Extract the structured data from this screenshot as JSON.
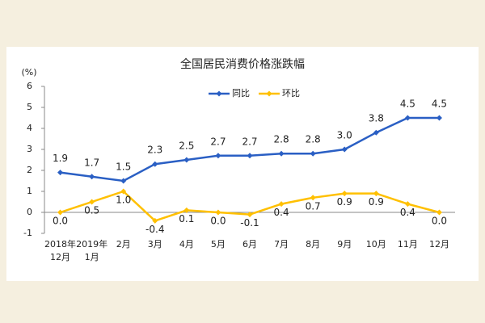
{
  "chart_data": {
    "type": "line",
    "title": "全国居民消费价格涨跌幅",
    "ylabel": "(%)",
    "categories": [
      "2018年\n12月",
      "2019年\n1月",
      "2月",
      "3月",
      "4月",
      "5月",
      "6月",
      "7月",
      "8月",
      "9月",
      "10月",
      "11月",
      "12月"
    ],
    "series": [
      {
        "name": "同比",
        "color": "#2a5fc4",
        "values": [
          1.9,
          1.7,
          1.5,
          2.3,
          2.5,
          2.7,
          2.7,
          2.8,
          2.8,
          3.0,
          3.8,
          4.5,
          4.5
        ],
        "value_labels": [
          "1.9",
          "1.7",
          "1.5",
          "2.3",
          "2.5",
          "2.7",
          "2.7",
          "2.8",
          "2.8",
          "3.0",
          "3.8",
          "4.5",
          "4.5"
        ]
      },
      {
        "name": "环比",
        "color": "#ffc000",
        "values": [
          0.0,
          0.5,
          1.0,
          -0.4,
          0.1,
          0.0,
          -0.1,
          0.4,
          0.7,
          0.9,
          0.9,
          0.4,
          0.0
        ],
        "value_labels": [
          "0.0",
          "0.5",
          "1.0",
          "-0.4",
          "0.1",
          "0.0",
          "-0.1",
          "0.4",
          "0.7",
          "0.9",
          "0.9",
          "0.4",
          "0.0"
        ]
      }
    ],
    "ylim": [
      -1,
      6
    ],
    "yticks": [
      -1,
      0,
      1,
      2,
      3,
      4,
      5,
      6
    ],
    "grid": false,
    "legend": "top"
  }
}
